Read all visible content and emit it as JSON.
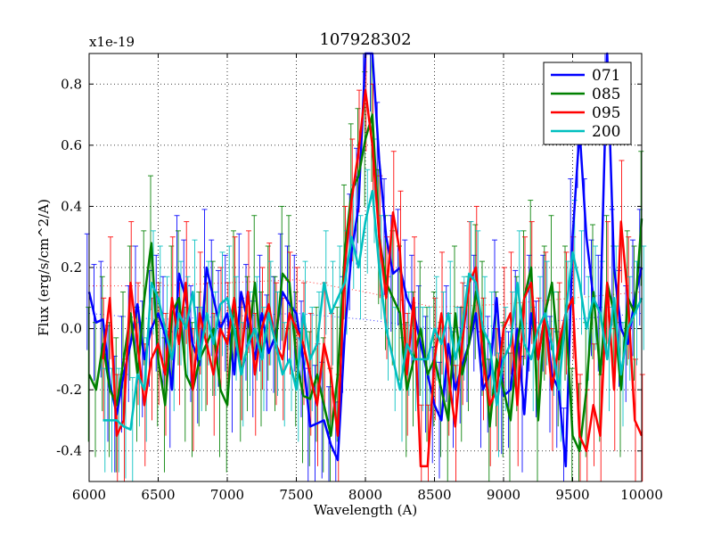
{
  "chart_data": {
    "type": "line",
    "title": "107928302",
    "xlabel": "Wavelength (A)",
    "ylabel": "Flux (erg/s/cm^2/A)",
    "offset_label": "x1e-19",
    "xlim": [
      6000,
      10000
    ],
    "ylim": [
      -0.5,
      0.9
    ],
    "xticks": [
      6000,
      6500,
      7000,
      7500,
      8000,
      8500,
      9000,
      9500,
      10000
    ],
    "xtick_labels": [
      "6000",
      "6500",
      "7000",
      "7500",
      "8000",
      "8500",
      "9000",
      "9500",
      "10000"
    ],
    "yticks": [
      -0.4,
      -0.2,
      0.0,
      0.2,
      0.4,
      0.6,
      0.8
    ],
    "ytick_labels": [
      "-0.4",
      "-0.2",
      "0.0",
      "0.2",
      "0.4",
      "0.6",
      "0.8"
    ],
    "grid": true,
    "legend_position": "top-right",
    "x": [
      6000,
      6050,
      6100,
      6150,
      6200,
      6250,
      6300,
      6350,
      6400,
      6450,
      6500,
      6550,
      6600,
      6650,
      6700,
      6750,
      6800,
      6850,
      6900,
      6950,
      7000,
      7050,
      7100,
      7150,
      7200,
      7250,
      7300,
      7350,
      7400,
      7450,
      7500,
      7550,
      7600,
      7650,
      7700,
      7750,
      7800,
      7850,
      7900,
      7950,
      8000,
      8050,
      8100,
      8150,
      8200,
      8250,
      8300,
      8350,
      8400,
      8450,
      8500,
      8550,
      8600,
      8650,
      8700,
      8750,
      8800,
      8850,
      8900,
      8950,
      9000,
      9050,
      9100,
      9150,
      9200,
      9250,
      9300,
      9350,
      9400,
      9450,
      9500,
      9550,
      9600,
      9650,
      9700,
      9750,
      9800,
      9850,
      9900,
      9950,
      10000
    ],
    "series": [
      {
        "name": "071",
        "color": "#0000ff",
        "values": [
          0.12,
          0.02,
          0.03,
          -0.18,
          -0.28,
          -0.15,
          -0.05,
          0.08,
          -0.1,
          0.0,
          0.05,
          -0.02,
          -0.2,
          0.18,
          0.1,
          -0.05,
          -0.12,
          0.2,
          0.1,
          0.0,
          0.05,
          -0.15,
          0.12,
          0.02,
          -0.1,
          0.05,
          -0.08,
          -0.02,
          0.12,
          0.08,
          0.05,
          -0.1,
          -0.32,
          -0.31,
          -0.3,
          -0.38,
          -0.43,
          -0.02,
          0.25,
          0.4,
          0.9,
          0.9,
          0.55,
          0.3,
          0.18,
          0.2,
          0.1,
          0.05,
          -0.05,
          -0.15,
          -0.25,
          -0.3,
          -0.05,
          -0.2,
          -0.12,
          -0.05,
          0.05,
          -0.2,
          -0.15,
          0.1,
          -0.22,
          -0.2,
          0.0,
          -0.28,
          0.05,
          -0.1,
          0.05,
          -0.15,
          -0.2,
          -0.45,
          0.3,
          0.65,
          0.3,
          0.1,
          0.05,
          0.9,
          0.2,
          0.0,
          -0.05,
          0.1,
          0.2
        ]
      },
      {
        "name": "085",
        "color": "#008000",
        "values": [
          -0.15,
          -0.2,
          -0.05,
          -0.2,
          -0.25,
          -0.1,
          0.05,
          -0.15,
          0.1,
          0.28,
          -0.1,
          -0.25,
          0.05,
          0.1,
          -0.15,
          -0.2,
          -0.1,
          -0.05,
          0.0,
          -0.2,
          -0.25,
          0.1,
          -0.15,
          -0.05,
          0.15,
          -0.1,
          0.05,
          -0.05,
          0.18,
          0.15,
          -0.1,
          -0.22,
          -0.23,
          -0.15,
          -0.25,
          -0.35,
          -0.15,
          0.25,
          0.45,
          0.5,
          0.62,
          0.7,
          0.3,
          0.15,
          0.1,
          0.05,
          -0.2,
          -0.1,
          0.0,
          -0.15,
          -0.1,
          -0.2,
          -0.3,
          0.05,
          -0.15,
          -0.05,
          0.12,
          0.0,
          -0.32,
          -0.1,
          -0.2,
          -0.3,
          -0.05,
          0.1,
          0.2,
          -0.3,
          0.05,
          0.15,
          -0.1,
          0.05,
          -0.35,
          -0.4,
          -0.2,
          0.12,
          -0.15,
          0.15,
          0.05,
          -0.2,
          0.1,
          0.05,
          0.36
        ]
      },
      {
        "name": "095",
        "color": "#ff0000",
        "values": [
          null,
          null,
          -0.1,
          0.1,
          -0.35,
          -0.3,
          0.15,
          -0.05,
          -0.25,
          -0.1,
          -0.05,
          -0.15,
          0.1,
          -0.05,
          0.15,
          -0.2,
          0.05,
          -0.05,
          -0.15,
          0.0,
          -0.05,
          0.1,
          -0.1,
          0.12,
          -0.15,
          0.0,
          0.08,
          -0.05,
          -0.1,
          0.05,
          0.0,
          -0.05,
          -0.15,
          -0.25,
          -0.05,
          -0.15,
          -0.35,
          0.2,
          0.42,
          0.58,
          0.78,
          0.6,
          0.3,
          0.1,
          0.38,
          0.25,
          -0.15,
          0.1,
          -0.45,
          -0.45,
          -0.1,
          0.05,
          -0.15,
          -0.32,
          -0.05,
          0.15,
          0.2,
          -0.1,
          -0.25,
          -0.2,
          0.0,
          0.05,
          -0.25,
          0.1,
          0.15,
          -0.1,
          0.05,
          -0.2,
          -0.05,
          0.05,
          0.1,
          -0.35,
          -0.4,
          -0.25,
          -0.35,
          0.15,
          -0.2,
          0.35,
          0.1,
          -0.3,
          -0.35
        ]
      },
      {
        "name": "200",
        "color": "#00bfbf",
        "values": [
          null,
          null,
          -0.3,
          -0.3,
          -0.3,
          -0.32,
          -0.33,
          -0.15,
          -0.2,
          0.15,
          0.1,
          0.0,
          -0.1,
          0.05,
          0.0,
          0.12,
          -0.1,
          0.05,
          -0.05,
          0.08,
          0.1,
          0.0,
          -0.15,
          -0.05,
          0.0,
          -0.1,
          0.05,
          -0.05,
          -0.15,
          -0.1,
          -0.2,
          0.05,
          -0.1,
          -0.05,
          0.15,
          0.05,
          0.1,
          0.15,
          0.3,
          0.2,
          0.35,
          0.45,
          0.2,
          0.0,
          -0.1,
          -0.2,
          -0.05,
          -0.1,
          -0.1,
          -0.1,
          0.0,
          -0.05,
          0.05,
          -0.1,
          0.0,
          0.18,
          0.15,
          0.0,
          -0.05,
          -0.25,
          -0.1,
          -0.05,
          0.15,
          -0.05,
          -0.1,
          0.0,
          0.05,
          -0.05,
          -0.2,
          0.05,
          0.25,
          0.15,
          0.0,
          0.1,
          0.05,
          -0.1,
          0.1,
          -0.15,
          0.0,
          0.05,
          0.1
        ]
      }
    ],
    "error_series": [
      {
        "name": "071",
        "color": "#0000ff",
        "err": 0.19
      },
      {
        "name": "085",
        "color": "#008000",
        "err": 0.22
      },
      {
        "name": "095",
        "color": "#ff0000",
        "err": 0.2
      },
      {
        "name": "200",
        "color": "#00bfbf",
        "err": 0.17
      }
    ],
    "dotted_curves": [
      {
        "color": "#ff0000",
        "x": [
          6000,
          6500,
          7000,
          7500,
          8000,
          8500,
          9000,
          9500,
          10000
        ],
        "values": [
          0.14,
          0.14,
          0.15,
          0.16,
          0.12,
          0.07,
          0.08,
          0.1,
          0.12
        ]
      },
      {
        "color": "#0000ff",
        "x": [
          6000,
          6500,
          7000,
          7500,
          8000,
          8500,
          9000,
          9500,
          10000
        ],
        "values": [
          0.05,
          0.03,
          0.04,
          0.05,
          0.03,
          0.0,
          0.01,
          0.03,
          0.05
        ]
      }
    ]
  }
}
